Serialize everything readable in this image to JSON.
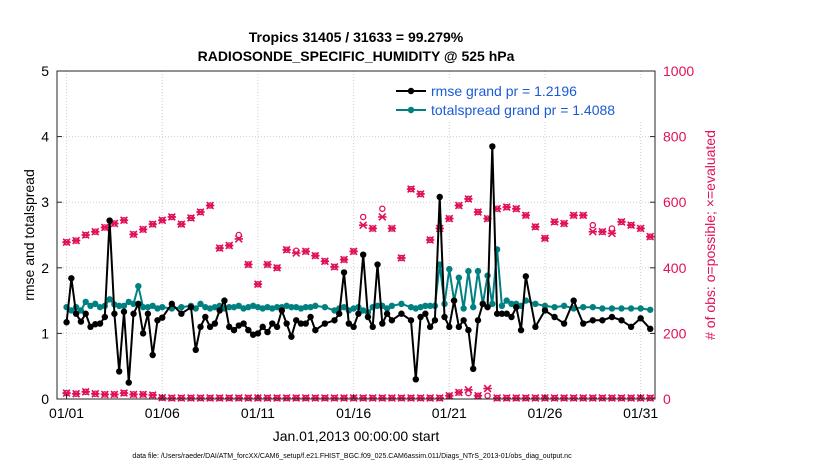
{
  "chart_data": {
    "type": "line",
    "title": "Tropics 31405 / 31633 = 99.279%",
    "subtitle": "RADIOSONDE_SPECIFIC_HUMIDITY @ 525 hPa",
    "xlabel": "Jan.01,2013 00:00:00 start",
    "ylabel": "rmse and totalspread",
    "y2label": "# of obs: o=possible; ×=evaluated",
    "footer": "data file: /Users/raeder/DAI/ATM_forcXX/CAM6_setup/f.e21.FHIST_BGC.f09_025.CAM6assim.011/Diags_NTrS_2013-01/obs_diag_output.nc",
    "xlim": [
      0.5,
      31.75
    ],
    "ylim": [
      0,
      5
    ],
    "y2lim": [
      0,
      1000
    ],
    "xticks": [
      1,
      6,
      11,
      16,
      21,
      26,
      31
    ],
    "xtick_labels": [
      "01/01",
      "01/06",
      "01/11",
      "01/16",
      "01/21",
      "01/26",
      "01/31"
    ],
    "yticks": [
      0,
      1,
      2,
      3,
      4,
      5
    ],
    "y2ticks": [
      0,
      200,
      400,
      600,
      800,
      1000
    ],
    "grid": "dotted",
    "legend_position": "top-right",
    "series": [
      {
        "name": "rmse grand pr = 1.2196",
        "axis": "left",
        "color": "#000000",
        "x": [
          1.0,
          1.25,
          1.5,
          1.75,
          2.0,
          2.25,
          2.5,
          2.75,
          3.0,
          3.25,
          3.5,
          3.75,
          4.0,
          4.25,
          4.5,
          4.75,
          5.0,
          5.25,
          5.5,
          5.75,
          6.0,
          6.5,
          7.0,
          7.5,
          7.75,
          8.0,
          8.25,
          8.5,
          8.75,
          9.0,
          9.25,
          9.5,
          9.75,
          10.0,
          10.25,
          10.5,
          10.75,
          11.0,
          11.25,
          11.5,
          11.75,
          12.0,
          12.25,
          12.5,
          12.75,
          13.0,
          13.25,
          13.5,
          13.75,
          14.0,
          14.5,
          15.0,
          15.25,
          15.5,
          15.75,
          16.0,
          16.25,
          16.5,
          16.75,
          17.0,
          17.25,
          17.5,
          17.75,
          18.0,
          18.5,
          19.0,
          19.25,
          19.5,
          19.75,
          20.0,
          20.25,
          20.5,
          20.75,
          21.0,
          21.25,
          21.5,
          21.75,
          22.0,
          22.25,
          22.5,
          22.75,
          23.0,
          23.25,
          23.5,
          23.75,
          24.0,
          24.25,
          24.5,
          24.75,
          25.0,
          25.5,
          26.0,
          26.5,
          27.0,
          27.5,
          28.0,
          28.5,
          29.0,
          29.5,
          30.0,
          30.5,
          31.0,
          31.5
        ],
        "values": [
          1.17,
          1.84,
          1.3,
          1.18,
          1.3,
          1.1,
          1.14,
          1.15,
          1.25,
          2.72,
          1.3,
          0.42,
          1.33,
          0.25,
          1.3,
          1.45,
          1.0,
          1.3,
          0.67,
          1.2,
          1.24,
          1.45,
          1.3,
          1.4,
          0.75,
          1.1,
          1.25,
          1.1,
          1.15,
          1.35,
          1.5,
          1.1,
          1.05,
          1.12,
          1.15,
          1.05,
          0.98,
          1.0,
          1.1,
          1.02,
          1.15,
          1.1,
          1.35,
          1.15,
          0.95,
          1.2,
          1.15,
          1.15,
          1.25,
          1.05,
          1.15,
          1.2,
          1.3,
          1.93,
          1.15,
          1.1,
          1.3,
          2.2,
          1.25,
          1.1,
          2.05,
          1.15,
          1.3,
          1.2,
          1.3,
          1.2,
          0.3,
          1.25,
          1.3,
          1.1,
          1.2,
          3.08,
          1.25,
          1.1,
          1.5,
          1.1,
          1.2,
          1.05,
          0.46,
          1.2,
          1.45,
          1.4,
          3.85,
          1.3,
          1.3,
          1.3,
          1.25,
          1.4,
          1.05,
          1.87,
          1.1,
          1.35,
          1.25,
          1.15,
          1.5,
          1.15,
          1.2,
          1.2,
          1.25,
          1.2,
          1.1,
          1.23,
          1.07
        ]
      },
      {
        "name": "totalspread grand pr = 1.4088",
        "axis": "left",
        "color": "#008080",
        "x": [
          1.0,
          1.25,
          1.5,
          1.75,
          2.0,
          2.25,
          2.5,
          2.75,
          3.0,
          3.25,
          3.5,
          3.75,
          4.0,
          4.25,
          4.5,
          4.75,
          5.0,
          5.25,
          5.5,
          5.75,
          6.0,
          6.5,
          7.0,
          7.5,
          7.75,
          8.0,
          8.25,
          8.5,
          8.75,
          9.0,
          9.25,
          9.5,
          9.75,
          10.0,
          10.25,
          10.5,
          10.75,
          11.0,
          11.25,
          11.5,
          11.75,
          12.0,
          12.25,
          12.5,
          12.75,
          13.0,
          13.25,
          13.5,
          13.75,
          14.0,
          14.5,
          15.0,
          15.25,
          15.5,
          15.75,
          16.0,
          16.25,
          16.5,
          16.75,
          17.0,
          17.25,
          17.5,
          17.75,
          18.0,
          18.5,
          19.0,
          19.25,
          19.5,
          19.75,
          20.0,
          20.25,
          20.5,
          20.75,
          21.0,
          21.25,
          21.5,
          21.75,
          22.0,
          22.25,
          22.5,
          22.75,
          23.0,
          23.25,
          23.5,
          23.75,
          24.0,
          24.25,
          24.5,
          24.75,
          25.0,
          25.5,
          26.0,
          26.5,
          27.0,
          27.5,
          28.0,
          28.5,
          29.0,
          29.5,
          30.0,
          30.5,
          31.0,
          31.5
        ],
        "values": [
          1.4,
          1.35,
          1.4,
          1.35,
          1.48,
          1.42,
          1.45,
          1.4,
          1.42,
          1.52,
          1.44,
          1.42,
          1.42,
          1.48,
          1.45,
          1.72,
          1.4,
          1.4,
          1.42,
          1.38,
          1.4,
          1.38,
          1.4,
          1.42,
          1.38,
          1.45,
          1.4,
          1.38,
          1.4,
          1.42,
          1.38,
          1.4,
          1.4,
          1.42,
          1.38,
          1.4,
          1.42,
          1.4,
          1.38,
          1.4,
          1.38,
          1.4,
          1.4,
          1.42,
          1.4,
          1.4,
          1.38,
          1.4,
          1.4,
          1.42,
          1.4,
          1.35,
          1.38,
          1.4,
          1.35,
          1.38,
          1.4,
          1.35,
          1.32,
          1.4,
          1.42,
          1.42,
          1.38,
          1.42,
          1.45,
          1.4,
          1.38,
          1.4,
          1.42,
          1.42,
          1.42,
          2.05,
          1.45,
          1.98,
          1.5,
          1.85,
          1.38,
          1.95,
          1.4,
          1.95,
          1.45,
          1.88,
          1.45,
          2.28,
          1.42,
          1.5,
          1.45,
          1.45,
          1.42,
          1.5,
          1.45,
          1.42,
          1.4,
          1.42,
          1.38,
          1.4,
          1.4,
          1.38,
          1.38,
          1.38,
          1.38,
          1.38,
          1.36
        ]
      },
      {
        "name": "obs possible",
        "axis": "right",
        "marker": "circle",
        "color": "#e0105a",
        "x": [
          1.0,
          1.5,
          2.0,
          2.5,
          3.0,
          3.5,
          4.0,
          4.5,
          5.0,
          5.5,
          6.0,
          6.5,
          7.0,
          7.5,
          8.0,
          8.5,
          9.0,
          9.5,
          10.0,
          10.5,
          11.0,
          11.5,
          12.0,
          12.5,
          13.0,
          13.5,
          14.0,
          14.5,
          15.0,
          15.5,
          16.0,
          16.5,
          17.0,
          17.5,
          18.0,
          18.5,
          19.0,
          19.5,
          20.0,
          20.5,
          21.0,
          21.5,
          22.0,
          22.5,
          23.0,
          23.5,
          24.0,
          24.5,
          25.0,
          25.5,
          26.0,
          26.5,
          27.0,
          27.5,
          28.0,
          28.5,
          29.0,
          29.5,
          30.0,
          30.5,
          31.0,
          31.5
        ],
        "values": [
          478,
          483,
          500,
          510,
          523,
          535,
          545,
          502,
          517,
          533,
          545,
          555,
          533,
          552,
          570,
          590,
          460,
          468,
          500,
          410,
          350,
          410,
          400,
          455,
          452,
          450,
          437,
          420,
          403,
          425,
          450,
          555,
          520,
          580,
          520,
          430,
          640,
          625,
          485,
          520,
          550,
          590,
          610,
          570,
          550,
          580,
          585,
          580,
          560,
          525,
          490,
          540,
          535,
          560,
          560,
          530,
          510,
          520,
          540,
          530,
          520,
          495
        ]
      },
      {
        "name": "obs evaluated",
        "axis": "right",
        "marker": "cross",
        "color": "#e0105a",
        "x": [
          1.0,
          1.5,
          2.0,
          2.5,
          3.0,
          3.5,
          4.0,
          4.5,
          5.0,
          5.5,
          6.0,
          6.5,
          7.0,
          7.5,
          8.0,
          8.5,
          9.0,
          9.5,
          10.0,
          10.5,
          11.0,
          11.5,
          12.0,
          12.5,
          13.0,
          13.5,
          14.0,
          14.5,
          15.0,
          15.5,
          16.0,
          16.5,
          17.0,
          17.5,
          18.0,
          18.5,
          19.0,
          19.5,
          20.0,
          20.5,
          21.0,
          21.5,
          22.0,
          22.5,
          23.0,
          23.5,
          24.0,
          24.5,
          25.0,
          25.5,
          26.0,
          26.5,
          27.0,
          27.5,
          28.0,
          28.5,
          29.0,
          29.5,
          30.0,
          30.5,
          31.0,
          31.5
        ],
        "values": [
          478,
          483,
          500,
          510,
          523,
          535,
          545,
          502,
          517,
          533,
          545,
          555,
          533,
          552,
          570,
          590,
          460,
          468,
          488,
          410,
          350,
          410,
          400,
          455,
          445,
          450,
          437,
          420,
          403,
          425,
          450,
          530,
          520,
          555,
          520,
          430,
          640,
          625,
          485,
          520,
          550,
          590,
          610,
          570,
          550,
          580,
          585,
          580,
          560,
          525,
          490,
          540,
          535,
          560,
          560,
          510,
          510,
          505,
          540,
          530,
          520,
          495
        ]
      },
      {
        "name": "obs low possible",
        "axis": "right",
        "marker": "circle",
        "color": "#e0105a",
        "x": [
          1.0,
          1.5,
          2.0,
          2.5,
          3.0,
          3.5,
          4.0,
          4.5,
          5.0,
          5.5,
          6.0,
          6.5,
          7.0,
          7.5,
          8.0,
          8.5,
          9.0,
          9.5,
          10.0,
          10.5,
          11.0,
          11.5,
          12.0,
          12.5,
          13.0,
          13.5,
          14.0,
          14.5,
          15.0,
          15.5,
          16.0,
          16.5,
          17.0,
          17.5,
          18.0,
          18.5,
          19.0,
          19.5,
          20.0,
          20.5,
          21.0,
          21.5,
          22.0,
          22.5,
          23.0,
          23.5,
          24.0,
          24.5,
          25.0,
          25.5,
          26.0,
          26.5,
          27.0,
          27.5,
          28.0,
          28.5,
          29.0,
          29.5,
          30.0,
          30.5,
          31.0,
          31.5
        ],
        "values": [
          18,
          16,
          22,
          16,
          14,
          14,
          18,
          14,
          14,
          12,
          4,
          3,
          3,
          3,
          3,
          3,
          3,
          3,
          3,
          3,
          3,
          3,
          3,
          3,
          3,
          3,
          3,
          3,
          3,
          3,
          3,
          3,
          3,
          3,
          3,
          3,
          3,
          3,
          3,
          3,
          10,
          20,
          18,
          10,
          10,
          3,
          3,
          3,
          3,
          3,
          3,
          3,
          3,
          3,
          3,
          3,
          3,
          3,
          3,
          3,
          3,
          3
        ]
      },
      {
        "name": "obs low evaluated",
        "axis": "right",
        "marker": "cross",
        "color": "#e0105a",
        "x": [
          1.0,
          1.5,
          2.0,
          2.5,
          3.0,
          3.5,
          4.0,
          4.5,
          5.0,
          5.5,
          6.0,
          6.5,
          7.0,
          7.5,
          8.0,
          8.5,
          9.0,
          9.5,
          10.0,
          10.5,
          11.0,
          11.5,
          12.0,
          12.5,
          13.0,
          13.5,
          14.0,
          14.5,
          15.0,
          15.5,
          16.0,
          16.5,
          17.0,
          17.5,
          18.0,
          18.5,
          19.0,
          19.5,
          20.0,
          20.5,
          21.0,
          21.5,
          22.0,
          22.5,
          23.0,
          23.5,
          24.0,
          24.5,
          25.0,
          25.5,
          26.0,
          26.5,
          27.0,
          27.5,
          28.0,
          28.5,
          29.0,
          29.5,
          30.0,
          30.5,
          31.0,
          31.5
        ],
        "values": [
          18,
          16,
          22,
          16,
          14,
          14,
          18,
          14,
          14,
          12,
          4,
          3,
          3,
          3,
          3,
          3,
          3,
          3,
          3,
          3,
          3,
          3,
          3,
          3,
          3,
          3,
          3,
          3,
          3,
          3,
          3,
          3,
          3,
          3,
          3,
          3,
          3,
          3,
          3,
          3,
          10,
          20,
          28,
          10,
          32,
          3,
          3,
          3,
          3,
          3,
          3,
          3,
          3,
          3,
          3,
          3,
          3,
          3,
          3,
          3,
          3,
          3
        ]
      }
    ]
  }
}
